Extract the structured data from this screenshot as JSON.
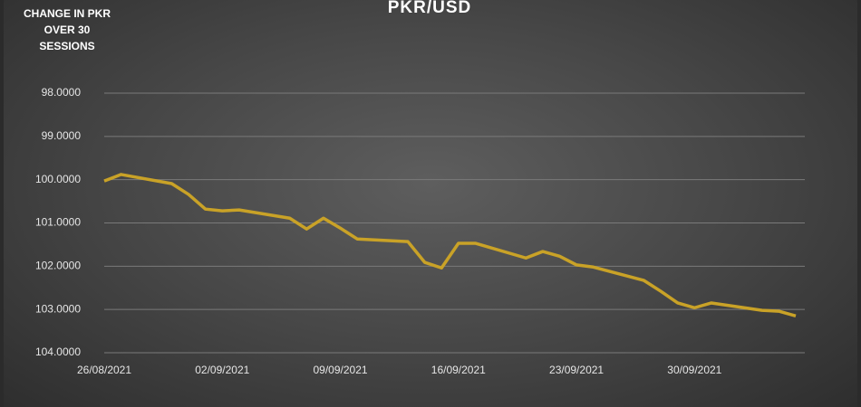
{
  "chart_data": {
    "type": "line",
    "title": "PKR/USD",
    "y_label": "CHANGE IN PKR OVER 30 SESSIONS",
    "x": [
      "2021-08-26",
      "2021-08-27",
      "2021-08-30",
      "2021-08-31",
      "2021-09-01",
      "2021-09-02",
      "2021-09-03",
      "2021-09-06",
      "2021-09-07",
      "2021-09-08",
      "2021-09-09",
      "2021-09-10",
      "2021-09-13",
      "2021-09-14",
      "2021-09-15",
      "2021-09-16",
      "2021-09-17",
      "2021-09-20",
      "2021-09-21",
      "2021-09-22",
      "2021-09-23",
      "2021-09-24",
      "2021-09-27",
      "2021-09-28",
      "2021-09-29",
      "2021-09-30",
      "2021-10-01",
      "2021-10-04",
      "2021-10-05",
      "2021-10-06"
    ],
    "series": [
      {
        "name": "PKR/USD",
        "color": "#c9a227",
        "values": [
          100.03,
          99.88,
          100.09,
          100.34,
          100.68,
          100.72,
          100.7,
          100.89,
          101.14,
          100.89,
          101.12,
          101.37,
          101.43,
          101.91,
          102.04,
          101.47,
          101.47,
          101.81,
          101.66,
          101.77,
          101.97,
          102.02,
          102.33,
          102.58,
          102.85,
          102.96,
          102.85,
          103.02,
          103.04,
          103.15
        ]
      }
    ],
    "ylim": [
      98,
      104
    ],
    "y_inverted": true,
    "yticks": [
      {
        "value": 98,
        "label": "98.0000"
      },
      {
        "value": 99,
        "label": "99.0000"
      },
      {
        "value": 100,
        "label": "100.0000"
      },
      {
        "value": 101,
        "label": "101.0000"
      },
      {
        "value": 102,
        "label": "102.0000"
      },
      {
        "value": 103,
        "label": "103.0000"
      },
      {
        "value": 104,
        "label": "104.0000"
      }
    ],
    "xlim": [
      "2021-08-26",
      "2021-10-06"
    ],
    "xticks": [
      {
        "value": "2021-08-26",
        "label": "26/08/2021"
      },
      {
        "value": "2021-09-02",
        "label": "02/09/2021"
      },
      {
        "value": "2021-09-09",
        "label": "09/09/2021"
      },
      {
        "value": "2021-09-16",
        "label": "16/09/2021"
      },
      {
        "value": "2021-09-23",
        "label": "23/09/2021"
      },
      {
        "value": "2021-09-30",
        "label": "30/09/2021"
      }
    ],
    "grid": true
  }
}
